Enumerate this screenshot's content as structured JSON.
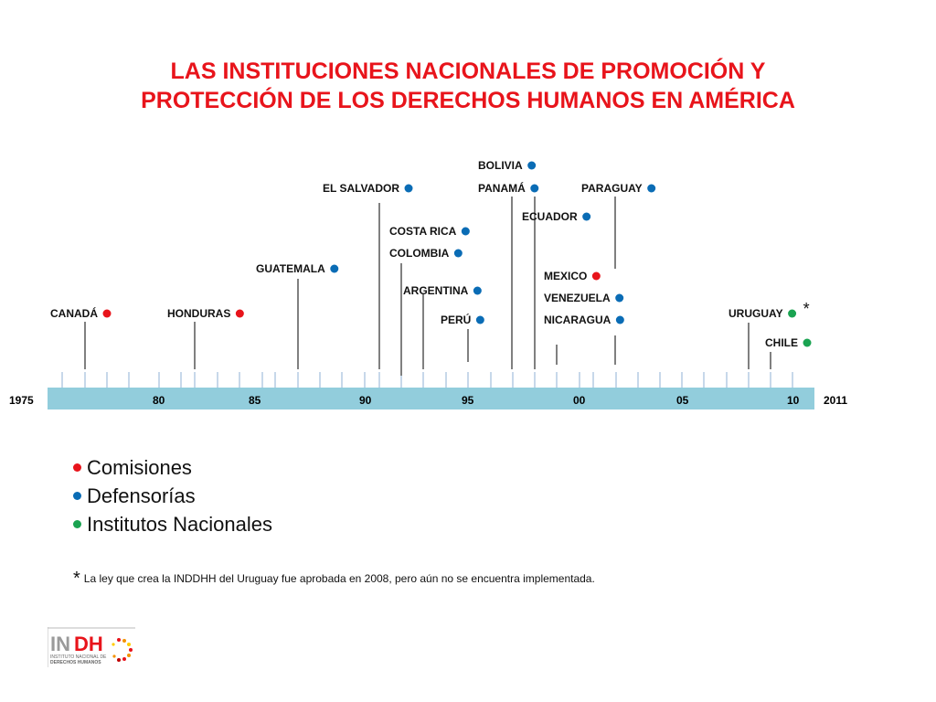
{
  "title": {
    "line1": "LAS INSTITUCIONES NACIONALES DE PROMOCIÓN Y",
    "line2": "PROTECCIÓN DE LOS DERECHOS HUMANOS EN AMÉRICA",
    "color": "#e8141b"
  },
  "timeline": {
    "start_label": "1975",
    "end_label": "2011",
    "tick_labels": [
      "80",
      "85",
      "90",
      "95",
      "00",
      "05",
      "10"
    ],
    "bar_color": "#92cddc",
    "events": [
      {
        "label": "CANADÁ",
        "type": "comision"
      },
      {
        "label": "HONDURAS",
        "type": "comision"
      },
      {
        "label": "GUATEMALA",
        "type": "defensoria"
      },
      {
        "label": "EL SALVADOR",
        "type": "defensoria"
      },
      {
        "label": "COSTA RICA",
        "type": "defensoria"
      },
      {
        "label": "COLOMBIA",
        "type": "defensoria"
      },
      {
        "label": "ARGENTINA",
        "type": "defensoria"
      },
      {
        "label": "PERÚ",
        "type": "defensoria"
      },
      {
        "label": "BOLIVIA",
        "type": "defensoria"
      },
      {
        "label": "PANAMÁ",
        "type": "defensoria"
      },
      {
        "label": "ECUADOR",
        "type": "defensoria"
      },
      {
        "label": "PARAGUAY",
        "type": "defensoria"
      },
      {
        "label": "MEXICO",
        "type": "comision"
      },
      {
        "label": "VENEZUELA",
        "type": "defensoria"
      },
      {
        "label": "NICARAGUA",
        "type": "defensoria"
      },
      {
        "label": "URUGUAY",
        "type": "instituto",
        "note": "*"
      },
      {
        "label": "CHILE",
        "type": "instituto"
      }
    ]
  },
  "legend": [
    {
      "label": "Comisiones",
      "type": "comision"
    },
    {
      "label": "Defensorías",
      "type": "defensoria"
    },
    {
      "label": "Institutos Nacionales",
      "type": "instituto"
    }
  ],
  "colors": {
    "comision": "#e8141b",
    "defensoria": "#0a6cb5",
    "instituto": "#1aa351"
  },
  "footnote": {
    "marker": "*",
    "text": "La ley que crea la INDDHH del Uruguay  fue aprobada en 2008, pero aún no se encuentra implementada."
  },
  "logo": {
    "name": "INDH",
    "subtitle": "INSTITUTO NACIONAL DE DERECHOS HUMANOS"
  }
}
